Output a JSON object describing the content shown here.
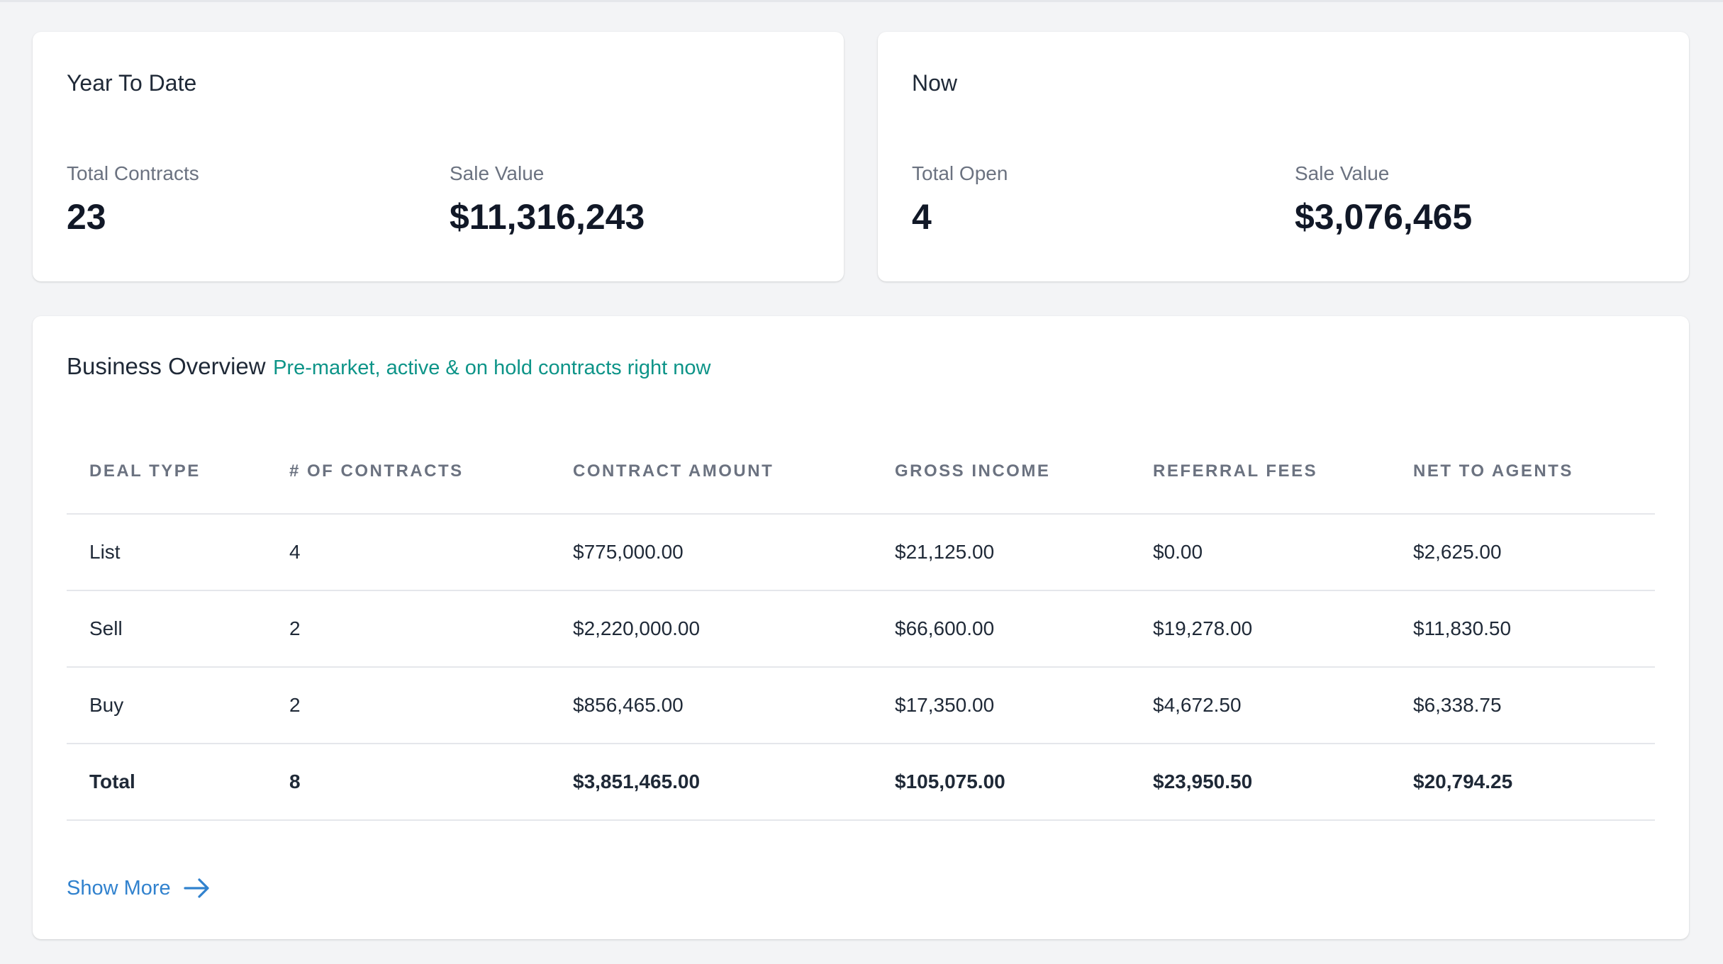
{
  "year_to_date": {
    "title": "Year To Date",
    "stats": [
      {
        "label": "Total Contracts",
        "value": "23"
      },
      {
        "label": "Sale Value",
        "value": "$11,316,243"
      }
    ]
  },
  "now": {
    "title": "Now",
    "stats": [
      {
        "label": "Total Open",
        "value": "4"
      },
      {
        "label": "Sale Value",
        "value": "$3,076,465"
      }
    ]
  },
  "business_overview": {
    "title": "Business Overview",
    "subtitle": "Pre-market, active & on hold contracts right now",
    "columns": [
      "DEAL TYPE",
      "# OF CONTRACTS",
      "CONTRACT AMOUNT",
      "GROSS INCOME",
      "REFERRAL FEES",
      "NET TO AGENTS"
    ],
    "rows": [
      [
        "List",
        "4",
        "$775,000.00",
        "$21,125.00",
        "$0.00",
        "$2,625.00"
      ],
      [
        "Sell",
        "2",
        "$2,220,000.00",
        "$66,600.00",
        "$19,278.00",
        "$11,830.50"
      ],
      [
        "Buy",
        "2",
        "$856,465.00",
        "$17,350.00",
        "$4,672.50",
        "$6,338.75"
      ]
    ],
    "total_row": [
      "Total",
      "8",
      "$3,851,465.00",
      "$105,075.00",
      "$23,950.50",
      "$20,794.25"
    ],
    "show_more_label": "Show More",
    "show_more_icon": "arrow-right-icon"
  },
  "colors": {
    "page_background": "#f3f4f6",
    "card_background": "#ffffff",
    "subtitle_accent": "#0d9488",
    "link_accent": "#3182ce",
    "muted_text": "#6b7280"
  }
}
